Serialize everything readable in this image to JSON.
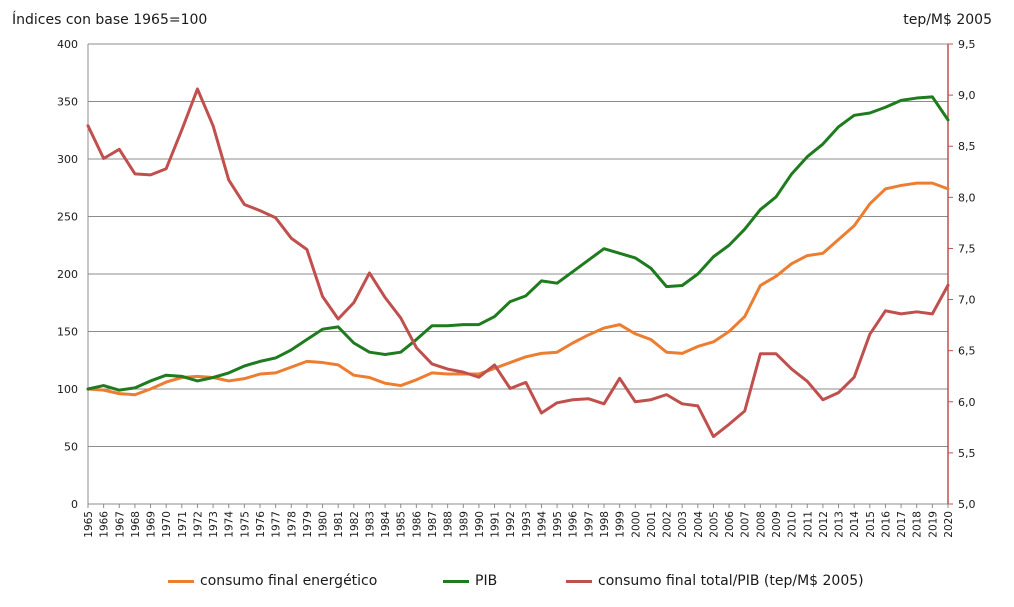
{
  "chart_data": {
    "type": "line",
    "ylabel_left": "Índices con base 1965=100",
    "ylabel_right": "tep/M$ 2005",
    "left_axis": {
      "ylim": [
        0,
        400
      ],
      "ticks": [
        "0",
        "50",
        "100",
        "150",
        "200",
        "250",
        "300",
        "350",
        "400"
      ]
    },
    "right_axis": {
      "ylim": [
        5.0,
        9.5
      ],
      "ticks": [
        "5,0",
        "5,5",
        "6,0",
        "6,5",
        "7,0",
        "7,5",
        "8,0",
        "8,5",
        "9,0",
        "9,5"
      ]
    },
    "grid": true,
    "legend_position": "bottom",
    "x": [
      "1965",
      "1966",
      "1967",
      "1968",
      "1969",
      "1970",
      "1971",
      "1972",
      "1973",
      "1974",
      "1975",
      "1976",
      "1977",
      "1978",
      "1979",
      "1980",
      "1981",
      "1982",
      "1983",
      "1984",
      "1985",
      "1986",
      "1987",
      "1988",
      "1989",
      "1990",
      "1991",
      "1992",
      "1993",
      "1994",
      "1995",
      "1996",
      "1997",
      "1998",
      "1999",
      "2000",
      "2001",
      "2002",
      "2003",
      "2004",
      "2005",
      "2006",
      "2007",
      "2008",
      "2009",
      "2010",
      "2011",
      "2012",
      "2013",
      "2014",
      "2015",
      "2016",
      "2017",
      "2018",
      "2019",
      "2020"
    ],
    "series": [
      {
        "name": "consumo final energético",
        "axis": "left",
        "color": "#ED7D31",
        "values": [
          100,
          99,
          96,
          95,
          100,
          106,
          110,
          111,
          110,
          107,
          109,
          113,
          114,
          119,
          124,
          123,
          121,
          112,
          110,
          105,
          103,
          108,
          114,
          113,
          113,
          113,
          118,
          123,
          128,
          131,
          132,
          140,
          147,
          153,
          156,
          148,
          143,
          132,
          131,
          137,
          141,
          150,
          163,
          190,
          198,
          209,
          216,
          218,
          230,
          242,
          261,
          274,
          277,
          279,
          279,
          274
        ]
      },
      {
        "name": "PIB",
        "axis": "left",
        "color": "#1E7B1E",
        "values": [
          100,
          103,
          99,
          101,
          107,
          112,
          111,
          107,
          110,
          114,
          120,
          124,
          127,
          134,
          143,
          152,
          154,
          140,
          132,
          130,
          132,
          143,
          155,
          155,
          156,
          156,
          163,
          176,
          181,
          194,
          192,
          202,
          212,
          222,
          218,
          214,
          205,
          189,
          190,
          200,
          215,
          225,
          239,
          256,
          267,
          287,
          302,
          313,
          328,
          338,
          340,
          345,
          351,
          353,
          354,
          334
        ]
      },
      {
        "name": "consumo final total/PIB (tep/M$ 2005)",
        "axis": "right",
        "color": "#C0504D",
        "values": [
          8.7,
          8.38,
          8.47,
          8.23,
          8.22,
          8.28,
          8.66,
          9.06,
          8.7,
          8.17,
          7.93,
          7.87,
          7.8,
          7.6,
          7.49,
          7.03,
          6.81,
          6.97,
          7.26,
          7.02,
          6.82,
          6.53,
          6.37,
          6.32,
          6.29,
          6.24,
          6.36,
          6.13,
          6.19,
          5.89,
          5.99,
          6.02,
          6.03,
          5.98,
          6.23,
          6.0,
          6.02,
          6.07,
          5.98,
          5.96,
          5.66,
          5.78,
          5.91,
          6.47,
          6.47,
          6.32,
          6.2,
          6.02,
          6.09,
          6.24,
          6.66,
          6.89,
          6.86,
          6.88,
          6.86,
          7.14
        ]
      }
    ]
  }
}
